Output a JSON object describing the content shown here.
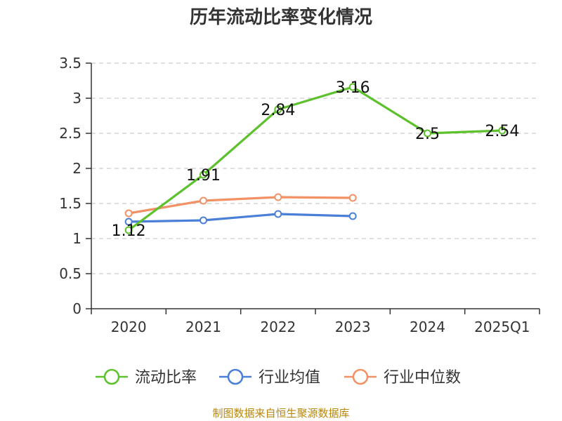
{
  "chart_data": {
    "type": "line",
    "title": "历年流动比率变化情况",
    "categories": [
      "2020",
      "2021",
      "2022",
      "2023",
      "2024",
      "2025Q1"
    ],
    "ylim": [
      0,
      3.5
    ],
    "yticks": [
      "0",
      "0.5",
      "1",
      "1.5",
      "2",
      "2.5",
      "3",
      "3.5"
    ],
    "ytick_values": [
      0,
      0.5,
      1,
      1.5,
      2,
      2.5,
      3,
      3.5
    ],
    "grid": true,
    "legend_position": "bottom",
    "series": [
      {
        "name": "流动比率",
        "color": "#5cc12c",
        "values": [
          1.12,
          1.91,
          2.84,
          3.16,
          2.5,
          2.54
        ],
        "labels": [
          "1.12",
          "1.91",
          "2.84",
          "3.16",
          "2.5",
          "2.54"
        ],
        "show_labels": true
      },
      {
        "name": "行业均值",
        "color": "#4a7fd8",
        "values": [
          1.24,
          1.26,
          1.35,
          1.32,
          null,
          null
        ],
        "show_labels": false
      },
      {
        "name": "行业中位数",
        "color": "#f29164",
        "values": [
          1.36,
          1.54,
          1.59,
          1.58,
          null,
          null
        ],
        "show_labels": false
      }
    ]
  },
  "source": "制图数据来自恒生聚源数据库"
}
